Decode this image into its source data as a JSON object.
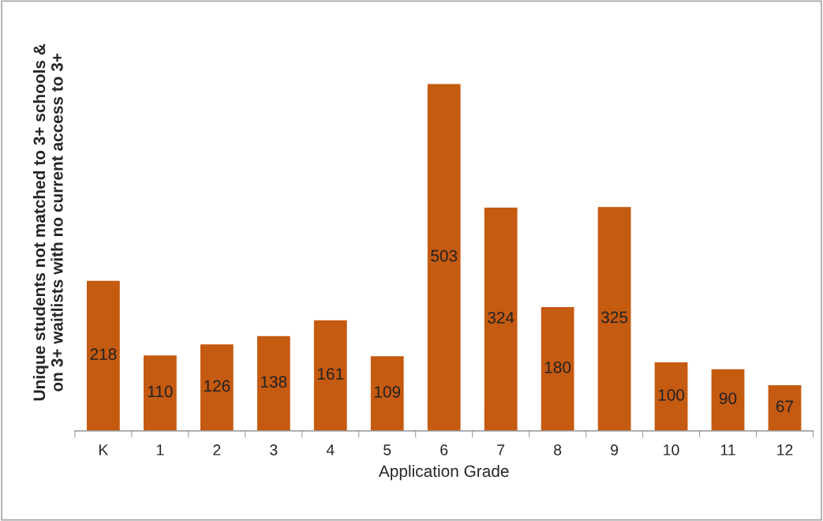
{
  "chart_data": {
    "type": "bar",
    "ylabel": "Unique students not matched to 3+ schools &\non 3+ waitlists with no current access to 3+",
    "xlabel": "Application Grade",
    "categories": [
      "K",
      "1",
      "2",
      "3",
      "4",
      "5",
      "6",
      "7",
      "8",
      "9",
      "10",
      "11",
      "12"
    ],
    "values": [
      218,
      110,
      126,
      138,
      161,
      109,
      503,
      324,
      180,
      325,
      100,
      90,
      67
    ],
    "color": "#c55a11",
    "data_labels": true,
    "grid": false,
    "legend": false
  }
}
